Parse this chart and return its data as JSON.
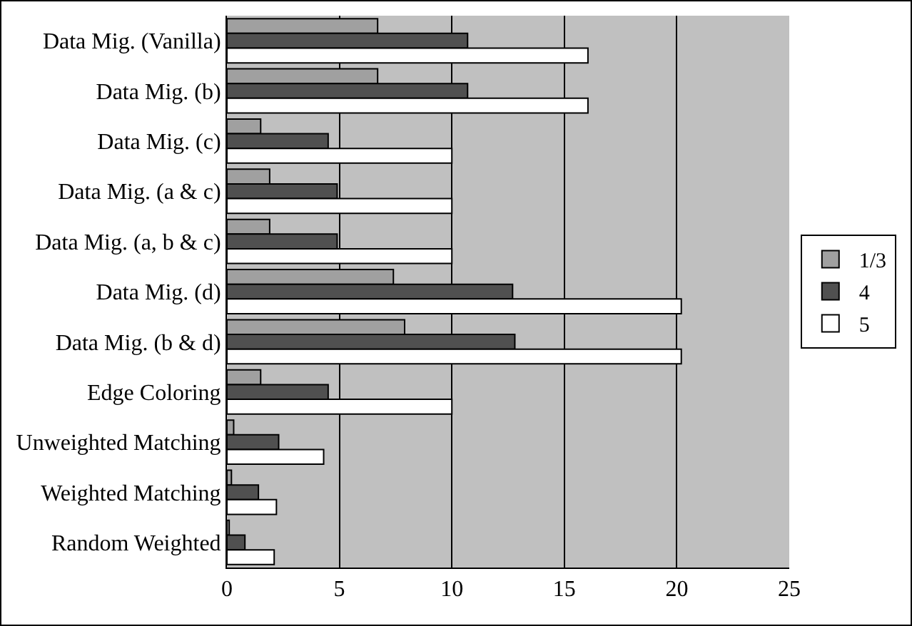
{
  "chart_data": {
    "type": "bar",
    "orientation": "horizontal",
    "categories": [
      "Data Mig. (Vanilla)",
      "Data Mig. (b)",
      "Data Mig. (c)",
      "Data Mig. (a & c)",
      "Data Mig. (a, b & c)",
      "Data Mig. (d)",
      "Data Mig. (b & d)",
      "Edge Coloring",
      "Unweighted Matching",
      "Weighted Matching",
      "Random Weighted"
    ],
    "series": [
      {
        "name": "1/3",
        "color": "#a0a0a0",
        "values": [
          6.7,
          6.7,
          1.5,
          1.9,
          1.9,
          7.4,
          7.9,
          1.5,
          0.3,
          0.2,
          0.1
        ]
      },
      {
        "name": "4",
        "color": "#505050",
        "values": [
          10.7,
          10.7,
          4.5,
          4.9,
          4.9,
          12.7,
          12.8,
          4.5,
          2.3,
          1.4,
          0.8
        ]
      },
      {
        "name": "5",
        "color": "#ffffff",
        "values": [
          16.05,
          16.05,
          10,
          10,
          10,
          20.2,
          20.2,
          10,
          4.3,
          2.2,
          2.1
        ]
      }
    ],
    "xlim": [
      0,
      25
    ],
    "xticks": [
      0,
      5,
      10,
      15,
      20,
      25
    ],
    "grid": "x",
    "legend": "right"
  }
}
